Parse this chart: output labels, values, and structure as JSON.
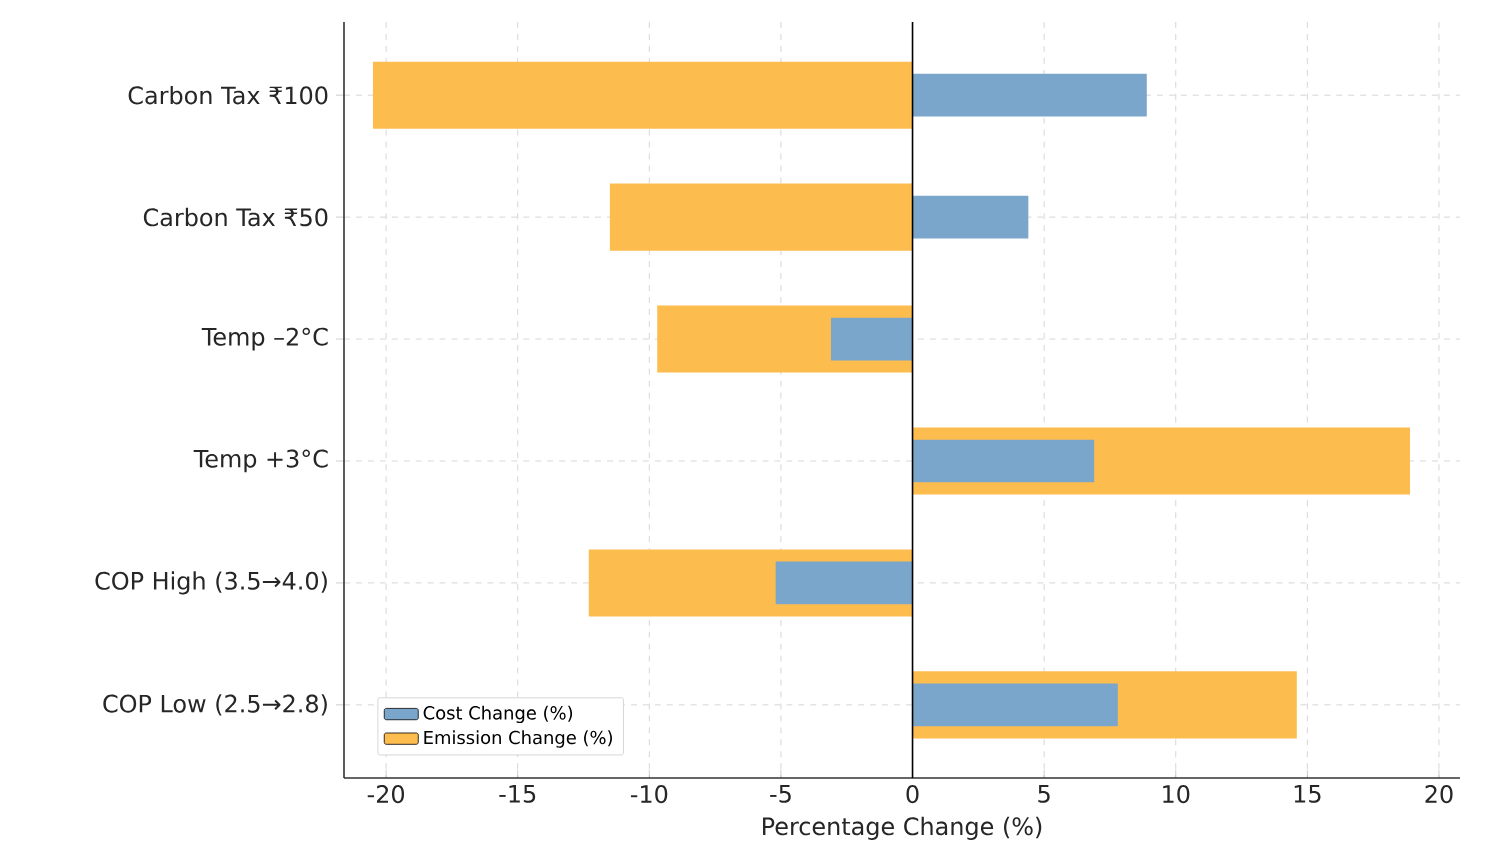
{
  "chart_data": {
    "type": "bar",
    "orientation": "horizontal",
    "xlabel": "Percentage Change (%)",
    "categories": [
      "Carbon Tax ₹100",
      "Carbon Tax ₹50",
      "Temp –2°C",
      "Temp +3°C",
      "COP High (3.5→4.0)",
      "COP Low (2.5→2.8)"
    ],
    "series": [
      {
        "name": "Cost Change (%)",
        "color": "#7ba6cb",
        "values": [
          8.9,
          4.4,
          -3.1,
          6.9,
          -5.2,
          7.8
        ]
      },
      {
        "name": "Emission Change (%)",
        "color": "#fdbd4e",
        "values": [
          -20.5,
          -11.5,
          -9.7,
          18.9,
          -12.3,
          14.6
        ]
      }
    ],
    "xlim": [
      -21.6,
      20.8
    ],
    "xticks": [
      -20,
      -15,
      -10,
      -5,
      0,
      5,
      10,
      15,
      20
    ],
    "ref_lines": [
      {
        "axis": "x",
        "value": 0,
        "color": "#000000"
      }
    ],
    "grid": true,
    "legend": "bottom left"
  }
}
